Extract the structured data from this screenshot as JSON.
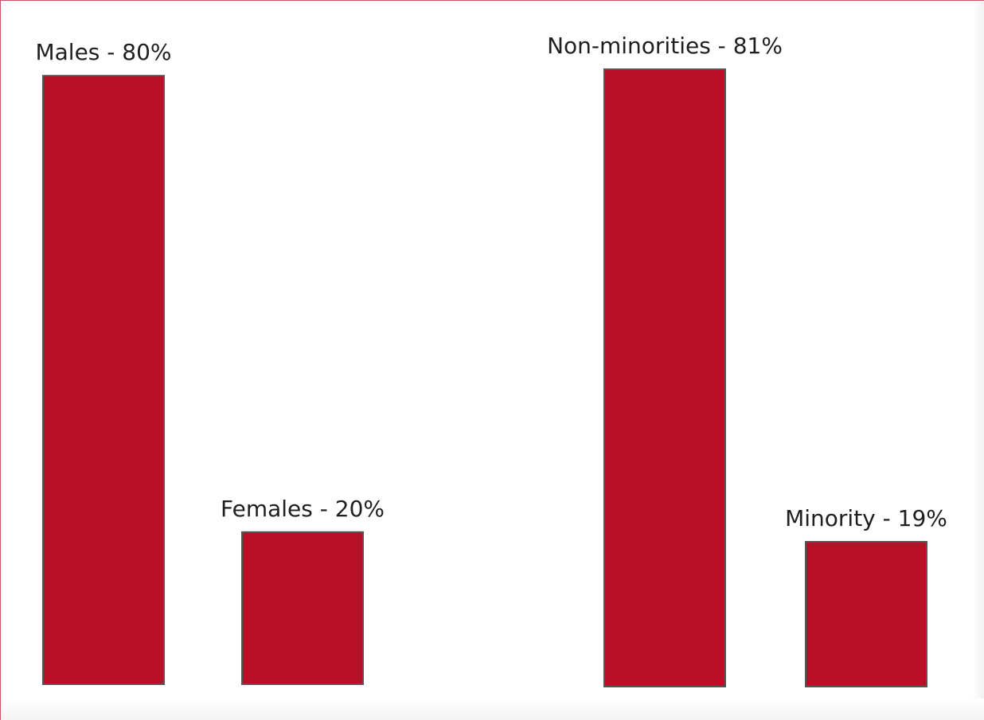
{
  "chart_data": [
    {
      "type": "bar",
      "categories": [
        "Males - 80%",
        "Females - 20%"
      ],
      "values": [
        80,
        20
      ],
      "unit": "%",
      "ylim": [
        0,
        100
      ],
      "grid": false,
      "legend": "none"
    },
    {
      "type": "bar",
      "categories": [
        "Non-minorities - 81%",
        "Minority - 19%"
      ],
      "values": [
        81,
        19
      ],
      "unit": "%",
      "ylim": [
        0,
        100
      ],
      "grid": false,
      "legend": "none"
    }
  ],
  "colors": {
    "bar_fill": "#b81027",
    "bar_stroke": "#555555",
    "frame_border": "#c9566a"
  }
}
